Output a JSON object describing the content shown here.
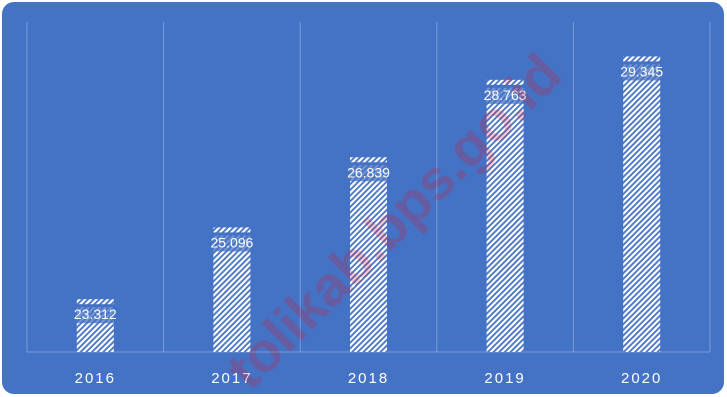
{
  "colors": {
    "background": "#4472c4",
    "grid": "#7c9ad6",
    "bar_hatch": "#ffffff",
    "bar_base": "#4472c4",
    "label_text": "#ffffff",
    "watermark": "#e0102a"
  },
  "watermark_text": "tolikab.bps.go.id",
  "chart_data": {
    "type": "bar",
    "categories": [
      "2016",
      "2017",
      "2018",
      "2019",
      "2020"
    ],
    "values": [
      23312,
      25096,
      26839,
      28763,
      29345
    ],
    "value_labels": [
      "23.312",
      "25.096",
      "26.839",
      "28.763",
      "29.345"
    ],
    "title": "",
    "xlabel": "",
    "ylabel": "",
    "ylim": [
      22000,
      30200
    ],
    "grid": "vertical",
    "legend": "none",
    "bar_style": "diagonal-hatch"
  }
}
